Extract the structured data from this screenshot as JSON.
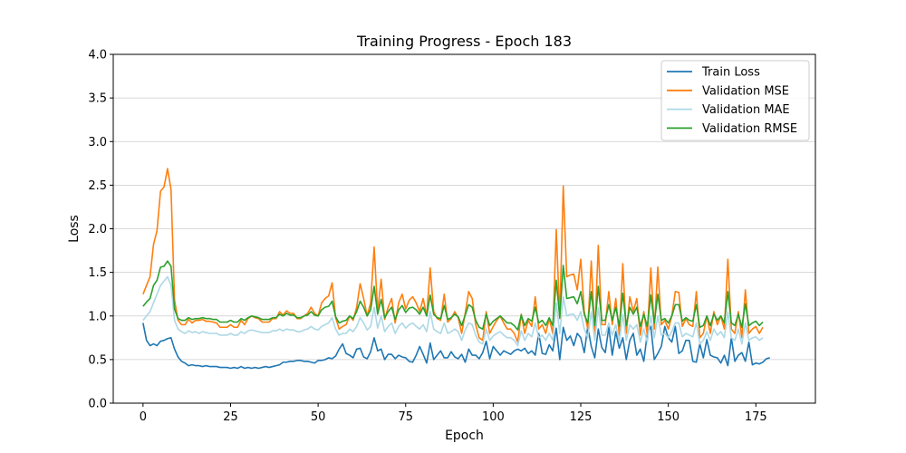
{
  "chart_data": {
    "type": "line",
    "title": "Training Progress - Epoch 183",
    "xlabel": "Epoch",
    "ylabel": "Loss",
    "xlim": [
      -8.5,
      192
    ],
    "ylim": [
      0,
      4
    ],
    "xticks": [
      "0",
      "25",
      "50",
      "75",
      "100",
      "125",
      "150",
      "175"
    ],
    "xtick_values": [
      0,
      25,
      50,
      75,
      100,
      125,
      150,
      175
    ],
    "yticks": [
      "0.0",
      "0.5",
      "1.0",
      "1.5",
      "2.0",
      "2.5",
      "3.0",
      "3.5",
      "4.0"
    ],
    "ytick_values": [
      0,
      0.5,
      1.0,
      1.5,
      2.0,
      2.5,
      3.0,
      3.5,
      4.0
    ],
    "grid": "horizontal",
    "legend_position": "top-right",
    "x_start": 0,
    "series": [
      {
        "name": "Train Loss",
        "color": "#1f77b4",
        "values": [
          0.92,
          0.72,
          0.66,
          0.68,
          0.66,
          0.71,
          0.72,
          0.74,
          0.75,
          0.62,
          0.53,
          0.48,
          0.46,
          0.43,
          0.44,
          0.43,
          0.43,
          0.42,
          0.43,
          0.42,
          0.42,
          0.42,
          0.41,
          0.41,
          0.41,
          0.4,
          0.41,
          0.4,
          0.42,
          0.4,
          0.41,
          0.4,
          0.41,
          0.4,
          0.41,
          0.42,
          0.41,
          0.42,
          0.43,
          0.44,
          0.47,
          0.47,
          0.48,
          0.48,
          0.49,
          0.49,
          0.48,
          0.48,
          0.47,
          0.46,
          0.49,
          0.49,
          0.5,
          0.52,
          0.51,
          0.54,
          0.62,
          0.68,
          0.57,
          0.55,
          0.52,
          0.62,
          0.63,
          0.53,
          0.51,
          0.59,
          0.75,
          0.6,
          0.62,
          0.5,
          0.56,
          0.56,
          0.51,
          0.55,
          0.53,
          0.52,
          0.48,
          0.47,
          0.55,
          0.65,
          0.56,
          0.46,
          0.69,
          0.5,
          0.55,
          0.6,
          0.52,
          0.52,
          0.59,
          0.53,
          0.51,
          0.56,
          0.47,
          0.62,
          0.55,
          0.55,
          0.51,
          0.58,
          0.71,
          0.51,
          0.65,
          0.6,
          0.55,
          0.6,
          0.58,
          0.56,
          0.6,
          0.62,
          0.6,
          0.63,
          0.57,
          0.6,
          0.55,
          0.8,
          0.57,
          0.56,
          0.67,
          0.6,
          0.86,
          0.5,
          0.87,
          0.72,
          0.77,
          0.66,
          0.8,
          0.75,
          0.58,
          0.88,
          0.65,
          0.52,
          0.85,
          0.64,
          0.58,
          0.87,
          0.55,
          0.82,
          0.63,
          0.75,
          0.5,
          0.72,
          0.8,
          0.55,
          0.62,
          0.48,
          0.8,
          0.88,
          0.5,
          0.57,
          0.65,
          0.88,
          0.75,
          0.7,
          0.88,
          0.57,
          0.6,
          0.72,
          0.72,
          0.48,
          0.47,
          0.68,
          0.52,
          0.73,
          0.55,
          0.53,
          0.52,
          0.46,
          0.55,
          0.43,
          0.75,
          0.48,
          0.55,
          0.58,
          0.48,
          0.7,
          0.44,
          0.46,
          0.45,
          0.47,
          0.51,
          0.52
        ]
      },
      {
        "name": "Validation MSE",
        "color": "#ff7f0e",
        "values": [
          1.25,
          1.35,
          1.45,
          1.82,
          1.98,
          2.43,
          2.48,
          2.69,
          2.45,
          1.18,
          0.95,
          0.9,
          0.9,
          0.96,
          0.92,
          0.95,
          0.95,
          0.96,
          0.94,
          0.94,
          0.93,
          0.92,
          0.87,
          0.87,
          0.87,
          0.9,
          0.87,
          0.87,
          0.95,
          0.9,
          0.97,
          1.0,
          0.98,
          0.97,
          0.93,
          0.93,
          0.93,
          0.97,
          0.97,
          1.05,
          1.01,
          1.06,
          1.03,
          1.03,
          0.97,
          0.97,
          1.0,
          1.03,
          1.1,
          1.03,
          1.0,
          1.15,
          1.2,
          1.23,
          1.38,
          0.98,
          0.85,
          0.88,
          0.9,
          1.0,
          0.95,
          1.1,
          1.37,
          1.2,
          1.0,
          1.15,
          1.79,
          1.05,
          1.42,
          0.96,
          1.1,
          1.2,
          0.92,
          1.15,
          1.25,
          1.08,
          1.18,
          1.22,
          1.15,
          1.05,
          1.2,
          1.0,
          1.55,
          1.05,
          0.97,
          0.95,
          1.25,
          0.93,
          0.97,
          1.05,
          0.98,
          0.8,
          1.03,
          1.28,
          1.2,
          0.9,
          0.75,
          0.72,
          1.05,
          0.8,
          0.88,
          0.95,
          1.0,
          0.92,
          0.85,
          0.85,
          0.8,
          0.7,
          1.02,
          0.8,
          0.95,
          0.88,
          1.22,
          0.85,
          0.9,
          0.8,
          0.97,
          0.8,
          1.99,
          0.97,
          2.49,
          1.45,
          1.47,
          1.48,
          1.3,
          1.65,
          1.05,
          0.85,
          1.63,
          0.8,
          1.81,
          0.9,
          0.9,
          1.28,
          0.9,
          1.2,
          0.78,
          1.6,
          0.8,
          1.22,
          1.05,
          1.2,
          0.78,
          1.05,
          0.78,
          1.55,
          0.85,
          1.56,
          0.9,
          0.95,
          0.85,
          1.0,
          1.28,
          1.27,
          0.88,
          0.97,
          0.9,
          0.88,
          1.28,
          0.75,
          0.8,
          1.0,
          0.8,
          1.05,
          0.9,
          1.0,
          0.85,
          1.65,
          0.85,
          0.8,
          1.05,
          0.75,
          1.3,
          0.8,
          0.85,
          0.88,
          0.8,
          0.87
        ]
      },
      {
        "name": "Validation MAE",
        "color": "#add8e6",
        "values": [
          0.95,
          1.0,
          1.05,
          1.15,
          1.25,
          1.35,
          1.4,
          1.45,
          1.35,
          0.95,
          0.85,
          0.82,
          0.8,
          0.83,
          0.81,
          0.82,
          0.8,
          0.82,
          0.81,
          0.8,
          0.8,
          0.8,
          0.78,
          0.78,
          0.78,
          0.8,
          0.78,
          0.78,
          0.82,
          0.8,
          0.83,
          0.84,
          0.83,
          0.82,
          0.81,
          0.81,
          0.81,
          0.83,
          0.83,
          0.85,
          0.83,
          0.85,
          0.84,
          0.84,
          0.82,
          0.82,
          0.84,
          0.85,
          0.88,
          0.85,
          0.84,
          0.88,
          0.9,
          0.92,
          0.98,
          0.85,
          0.78,
          0.8,
          0.8,
          0.85,
          0.82,
          0.88,
          0.98,
          0.92,
          0.84,
          0.88,
          1.1,
          0.86,
          1.0,
          0.82,
          0.88,
          0.92,
          0.8,
          0.88,
          0.92,
          0.86,
          0.9,
          0.92,
          0.88,
          0.85,
          0.9,
          0.82,
          1.05,
          0.85,
          0.82,
          0.8,
          0.92,
          0.8,
          0.82,
          0.85,
          0.82,
          0.72,
          0.84,
          0.92,
          0.9,
          0.78,
          0.7,
          0.68,
          0.85,
          0.72,
          0.77,
          0.8,
          0.82,
          0.78,
          0.75,
          0.75,
          0.72,
          0.66,
          0.83,
          0.72,
          0.8,
          0.76,
          0.92,
          0.75,
          0.78,
          0.72,
          0.8,
          0.72,
          1.15,
          0.8,
          1.22,
          1.0,
          1.02,
          1.02,
          0.95,
          1.05,
          0.85,
          0.75,
          1.05,
          0.72,
          1.1,
          0.78,
          0.78,
          0.92,
          0.78,
          0.9,
          0.7,
          1.02,
          0.72,
          0.9,
          0.85,
          0.9,
          0.7,
          0.85,
          0.7,
          1.0,
          0.75,
          1.0,
          0.78,
          0.8,
          0.75,
          0.82,
          0.92,
          0.92,
          0.76,
          0.8,
          0.78,
          0.76,
          0.92,
          0.68,
          0.72,
          0.82,
          0.72,
          0.85,
          0.78,
          0.82,
          0.75,
          1.05,
          0.75,
          0.72,
          0.85,
          0.68,
          0.92,
          0.72,
          0.75,
          0.76,
          0.72,
          0.75
        ]
      },
      {
        "name": "Validation RMSE",
        "color": "#2ca02c",
        "values": [
          1.11,
          1.16,
          1.2,
          1.35,
          1.41,
          1.56,
          1.57,
          1.63,
          1.57,
          1.08,
          0.97,
          0.95,
          0.95,
          0.98,
          0.96,
          0.97,
          0.97,
          0.98,
          0.97,
          0.97,
          0.96,
          0.96,
          0.93,
          0.93,
          0.93,
          0.95,
          0.93,
          0.93,
          0.97,
          0.95,
          0.98,
          1.0,
          0.99,
          0.98,
          0.96,
          0.96,
          0.96,
          0.98,
          0.98,
          1.02,
          1.0,
          1.03,
          1.01,
          1.01,
          0.98,
          0.98,
          1.0,
          1.01,
          1.05,
          1.01,
          1.0,
          1.07,
          1.1,
          1.11,
          1.17,
          0.99,
          0.92,
          0.94,
          0.95,
          1.0,
          0.97,
          1.05,
          1.17,
          1.1,
          1.0,
          1.07,
          1.34,
          1.02,
          1.19,
          0.98,
          1.05,
          1.1,
          0.96,
          1.07,
          1.12,
          1.04,
          1.09,
          1.1,
          1.07,
          1.02,
          1.1,
          1.0,
          1.24,
          1.02,
          0.98,
          0.97,
          1.12,
          0.96,
          0.98,
          1.02,
          0.99,
          0.89,
          1.01,
          1.13,
          1.1,
          0.95,
          0.87,
          0.85,
          1.02,
          0.89,
          0.94,
          0.97,
          1.0,
          0.96,
          0.92,
          0.92,
          0.89,
          0.84,
          1.01,
          0.89,
          0.97,
          0.94,
          1.1,
          0.92,
          0.95,
          0.89,
          0.98,
          0.89,
          1.41,
          0.98,
          1.58,
          1.2,
          1.21,
          1.22,
          1.14,
          1.28,
          1.02,
          0.92,
          1.28,
          0.89,
          1.34,
          0.95,
          0.95,
          1.13,
          0.95,
          1.1,
          0.88,
          1.26,
          0.89,
          1.1,
          1.02,
          1.1,
          0.88,
          1.02,
          0.88,
          1.24,
          0.92,
          1.25,
          0.95,
          0.97,
          0.92,
          1.0,
          1.13,
          1.13,
          0.94,
          0.98,
          0.95,
          0.94,
          1.13,
          0.87,
          0.89,
          1.0,
          0.89,
          1.02,
          0.95,
          1.0,
          0.92,
          1.28,
          0.92,
          0.89,
          1.02,
          0.87,
          1.14,
          0.89,
          0.92,
          0.94,
          0.89,
          0.93
        ]
      }
    ]
  }
}
